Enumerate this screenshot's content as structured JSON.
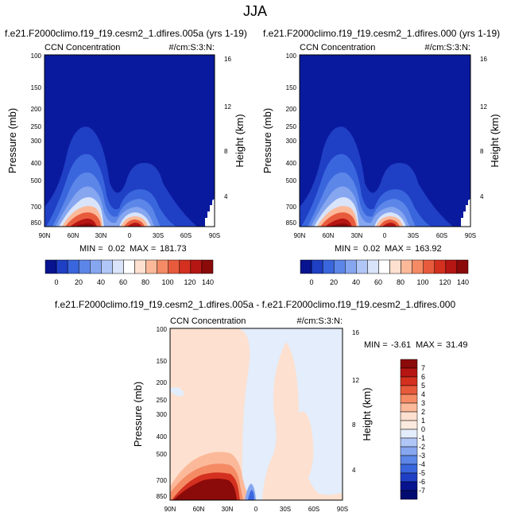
{
  "page_title": "JJA",
  "chart_data": [
    {
      "type": "heatmap",
      "id": "top-left",
      "title": "f.e21.F2000climo.f19_f19.cesm2_1.dfires.005a (yrs 1-19)",
      "left_label": "CCN Concentration",
      "right_label": "#/cm:S:3:N:",
      "ylabel": "Pressure (mb)",
      "ylabel_right": "Height (km)",
      "x_ticks": [
        "90N",
        "60N",
        "30N",
        "0",
        "30S",
        "60S",
        "90S"
      ],
      "y_ticks": [
        "100",
        "150",
        "200",
        "250",
        "300",
        "400",
        "500",
        "700",
        "850"
      ],
      "height_ticks": [
        "16",
        "12",
        "8",
        "4"
      ],
      "min_label": "MIN =",
      "min_value": "0.02",
      "max_label": "MAX =",
      "max_value": "181.73",
      "colorbar_labels": [
        "0",
        "20",
        "40",
        "60",
        "80",
        "100",
        "120",
        "140"
      ],
      "colorbar_colors": [
        "#07138f",
        "#1f3fc5",
        "#3a66dd",
        "#5c86e8",
        "#86a6f0",
        "#b0c6f6",
        "#d9e4fa",
        "#ffffff",
        "#fde0cf",
        "#fbb99a",
        "#f48b65",
        "#e85a3c",
        "#d3301f",
        "#b51513",
        "#8b0a0a"
      ]
    },
    {
      "type": "heatmap",
      "id": "top-right",
      "title": "f.e21.F2000climo.f19_f19.cesm2_1.dfires.000 (yrs 1-19)",
      "left_label": "CCN Concentration",
      "right_label": "#/cm:S:3:N:",
      "ylabel": "Pressure (mb)",
      "ylabel_right": "Height (km)",
      "x_ticks": [
        "90N",
        "60N",
        "30N",
        "0",
        "30S",
        "60S",
        "90S"
      ],
      "y_ticks": [
        "100",
        "150",
        "200",
        "250",
        "300",
        "400",
        "500",
        "700",
        "850"
      ],
      "height_ticks": [
        "16",
        "12",
        "8",
        "4"
      ],
      "min_label": "MIN =",
      "min_value": "0.02",
      "max_label": "MAX =",
      "max_value": "163.92",
      "colorbar_labels": [
        "0",
        "20",
        "40",
        "60",
        "80",
        "100",
        "120",
        "140"
      ],
      "colorbar_colors": [
        "#07138f",
        "#1f3fc5",
        "#3a66dd",
        "#5c86e8",
        "#86a6f0",
        "#b0c6f6",
        "#d9e4fa",
        "#ffffff",
        "#fde0cf",
        "#fbb99a",
        "#f48b65",
        "#e85a3c",
        "#d3301f",
        "#b51513",
        "#8b0a0a"
      ]
    },
    {
      "type": "heatmap",
      "id": "bottom-diff",
      "title": "f.e21.F2000climo.f19_f19.cesm2_1.dfires.005a - f.e21.F2000climo.f19_f19.cesm2_1.dfires.000",
      "left_label": "CCN Concentration",
      "right_label": "#/cm:S:3:N:",
      "ylabel": "Pressure (mb)",
      "ylabel_right": "Height (km)",
      "x_ticks": [
        "90N",
        "60N",
        "30N",
        "0",
        "30S",
        "60S",
        "90S"
      ],
      "y_ticks": [
        "100",
        "150",
        "200",
        "250",
        "300",
        "400",
        "500",
        "700",
        "850"
      ],
      "height_ticks": [
        "16",
        "12",
        "8",
        "4"
      ],
      "min_label": "MIN =",
      "min_value": "-3.61",
      "max_label": "MAX =",
      "max_value": "31.49",
      "colorbar_labels": [
        "7",
        "6",
        "5",
        "4",
        "3",
        "2",
        "1",
        "0",
        "-1",
        "-2",
        "-3",
        "-4",
        "-5",
        "-6",
        "-7"
      ],
      "colorbar_colors": [
        "#8b0a0a",
        "#b51513",
        "#d3301f",
        "#e85a3c",
        "#f48b65",
        "#fbb99a",
        "#fde0cf",
        "#fdeadf",
        "#e3edfb",
        "#b0c6f6",
        "#86a6f0",
        "#5c86e8",
        "#3a66dd",
        "#1f3fc5",
        "#07138f",
        "#020c70"
      ]
    }
  ]
}
